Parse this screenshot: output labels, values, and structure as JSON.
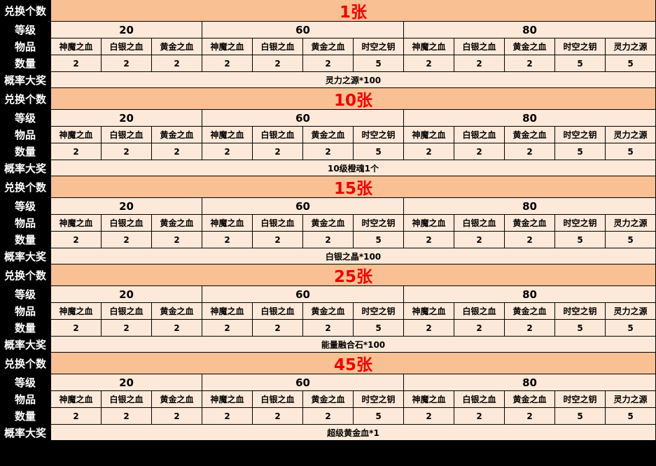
{
  "labels": {
    "exchange": "兑换个数",
    "level": "等级",
    "item": "物品",
    "quantity": "数量",
    "grand_prize": "概率大奖"
  },
  "levels": [
    "20",
    "60",
    "80"
  ],
  "items": [
    "神魔之血",
    "白银之血",
    "黄金之血",
    "神魔之血",
    "白银之血",
    "黄金之血",
    "时空之钥",
    "神魔之血",
    "白银之血",
    "黄金之血",
    "时空之钥",
    "灵力之源"
  ],
  "quantities": [
    "2",
    "2",
    "2",
    "2",
    "2",
    "2",
    "5",
    "2",
    "2",
    "2",
    "5",
    "5"
  ],
  "blocks": [
    {
      "title": "1张",
      "prize": "灵力之源*100"
    },
    {
      "title": "10张",
      "prize": "10级橙魂1个"
    },
    {
      "title": "15张",
      "prize": "白银之晶*100"
    },
    {
      "title": "25张",
      "prize": "能量融合石*100"
    },
    {
      "title": "45张",
      "prize": "超级黄金血*1"
    }
  ],
  "colors": {
    "header_bg": "#f9c093",
    "cell_bg": "#fde9d9",
    "title_text": "#f20000",
    "label_bg": "#000000",
    "label_text": "#ffffff"
  }
}
